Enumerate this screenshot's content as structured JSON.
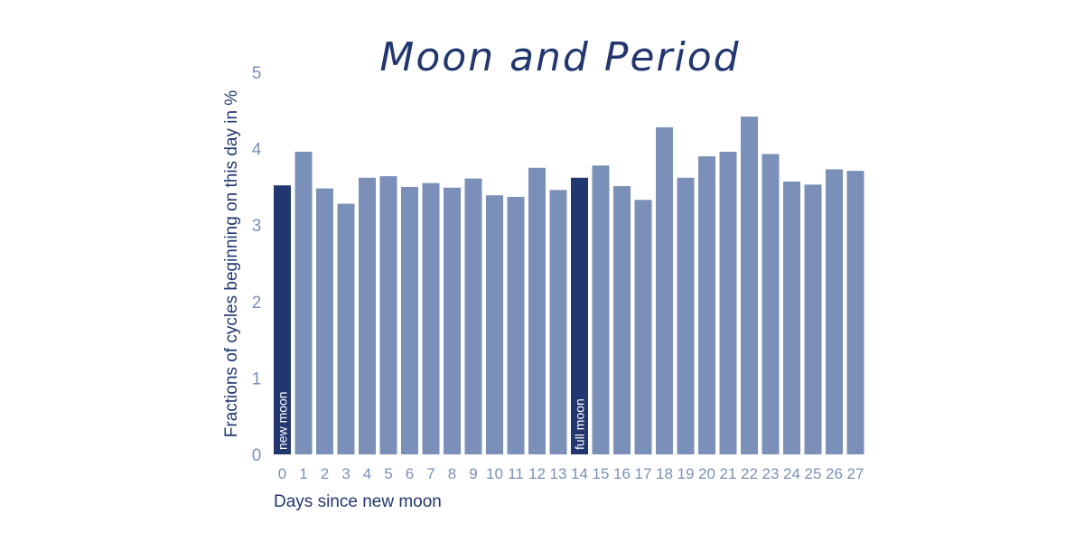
{
  "chart_data": {
    "type": "bar",
    "title": "Moon and Period",
    "xlabel": "Days since new moon",
    "ylabel": "Fractions of cycles beginning on this day in %",
    "ylim": [
      0,
      5
    ],
    "yticks": [
      "0",
      "1",
      "2",
      "3",
      "4",
      "5"
    ],
    "categories": [
      "0",
      "1",
      "2",
      "3",
      "4",
      "5",
      "6",
      "7",
      "8",
      "9",
      "10",
      "11",
      "12",
      "13",
      "14",
      "15",
      "16",
      "17",
      "18",
      "19",
      "20",
      "21",
      "22",
      "23",
      "24",
      "25",
      "26",
      "27"
    ],
    "values": [
      3.52,
      3.96,
      3.48,
      3.28,
      3.62,
      3.64,
      3.5,
      3.55,
      3.49,
      3.61,
      3.39,
      3.37,
      3.75,
      3.46,
      3.62,
      3.78,
      3.51,
      3.33,
      4.28,
      3.62,
      3.9,
      3.96,
      4.42,
      3.93,
      3.57,
      3.53,
      3.73,
      3.71
    ],
    "highlights": [
      {
        "index": 0,
        "label": "new moon"
      },
      {
        "index": 14,
        "label": "full moon"
      }
    ],
    "colors": {
      "bar": "#7a90b8",
      "highlight": "#22376f",
      "tick": "#7a90b8",
      "text": "#22376f"
    },
    "grid": false,
    "legend": "none"
  }
}
